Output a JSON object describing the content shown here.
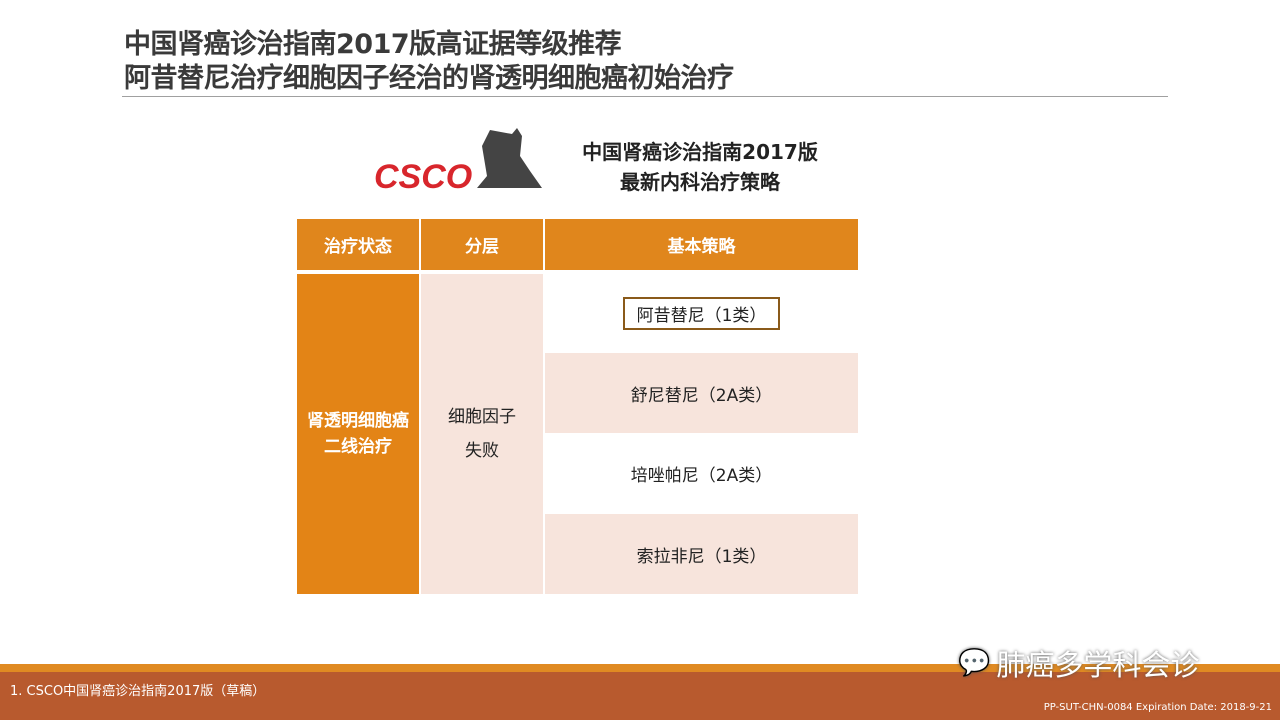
{
  "title": {
    "line1": "中国肾癌诊治指南2017版高证据等级推荐",
    "line2": "阿昔替尼治疗细胞因子经治的肾透明细胞癌初始治疗"
  },
  "logo": {
    "text": "CSCO"
  },
  "subtitle": {
    "line1": "中国肾癌诊治指南2017版",
    "line2": "最新内科治疗策略"
  },
  "table": {
    "headers": [
      "治疗状态",
      "分层",
      "基本策略"
    ],
    "status": "肾透明细胞癌二线治疗",
    "layer": "细胞因子失败",
    "strategies": [
      "阿昔替尼（1类）",
      "舒尼替尼（2A类）",
      "培唑帕尼（2A类）",
      "索拉非尼（1类）"
    ]
  },
  "footer": {
    "reference": "1.   CSCO中国肾癌诊治指南2017版（草稿）",
    "code": "PP-SUT-CHN-0084 Expiration Date: 2018-9-21",
    "watermark": "肺癌多学科会诊"
  },
  "colors": {
    "orange": "#e0861c",
    "pink": "#f7e4dc",
    "footer": "#b85a2e"
  }
}
